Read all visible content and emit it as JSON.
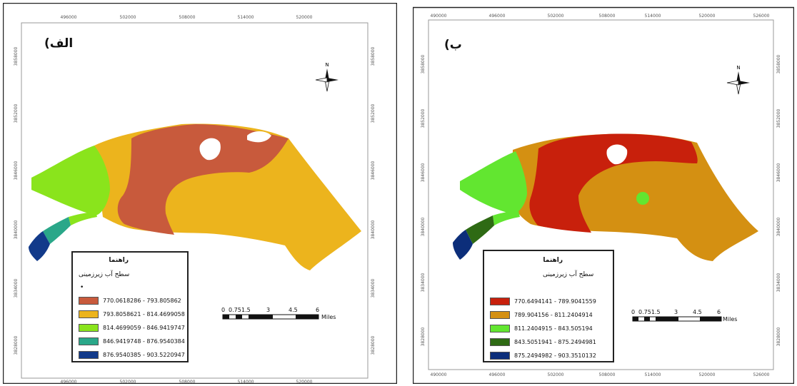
{
  "panels": [
    {
      "label": "(الف",
      "legend": {
        "title": "راهنما",
        "subtitle": "سطح آب زیرزمینی",
        "marker": "•",
        "classes": [
          {
            "label": "770.0618286 - 793.805862",
            "color": "#c85a3c"
          },
          {
            "label": "793.8058621 - 814.4699058",
            "color": "#ecb41d"
          },
          {
            "label": "814.4699059 - 846.9419747",
            "color": "#8ae41c"
          },
          {
            "label": "846.9419748 - 876.9540384",
            "color": "#2aa789"
          },
          {
            "label": "876.9540385 - 903.5220947",
            "color": "#123a8a"
          }
        ]
      },
      "x_ticks": [
        "496000",
        "502000",
        "508000",
        "514000",
        "520000"
      ],
      "y_ticks": [
        "3858000",
        "3852000",
        "3846000",
        "3840000",
        "3834000",
        "3828000"
      ]
    },
    {
      "label": "(ب",
      "legend": {
        "title": "راهنما",
        "subtitle": "سطح آب زیرزمینی",
        "classes": [
          {
            "label": "770.6494141 - 789.9041559",
            "color": "#c8200c"
          },
          {
            "label": "789.904156 - 811.2404914",
            "color": "#d49012"
          },
          {
            "label": "811.2404915 - 843.505194",
            "color": "#62e630"
          },
          {
            "label": "843.5051941 - 875.2494981",
            "color": "#2e6a14"
          },
          {
            "label": "875.2494982 - 903.3510132",
            "color": "#0c2e7a"
          }
        ]
      },
      "x_ticks": [
        "490000",
        "496000",
        "502000",
        "508000",
        "514000",
        "520000",
        "526000"
      ],
      "y_ticks": [
        "3858000",
        "3852000",
        "3846000",
        "3840000",
        "3834000",
        "3828000"
      ]
    }
  ],
  "scale_bar": {
    "ticks_a": [
      "0",
      "0.75",
      "1.5",
      "3",
      "4.5",
      "6"
    ],
    "ticks_b": [
      "0",
      "0.751.5",
      "3",
      "4.5",
      "6"
    ],
    "unit": "Miles"
  },
  "north_arrow": {
    "label": "N"
  }
}
